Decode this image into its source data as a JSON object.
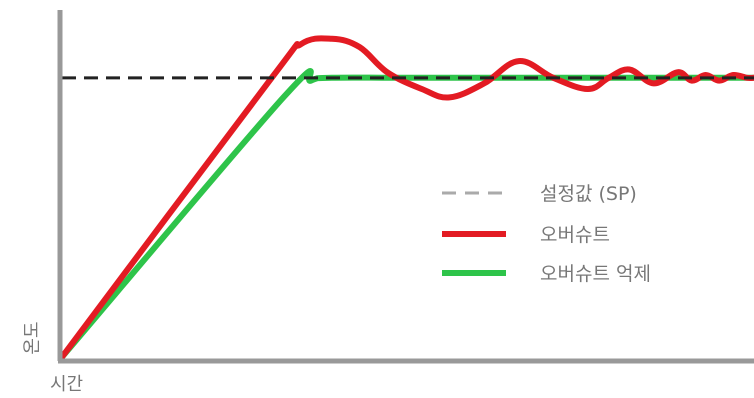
{
  "chart_data": {
    "type": "line",
    "xlabel": "시간",
    "ylabel": "온도",
    "colors": {
      "axis": "#999999",
      "setpoint": "#222222",
      "overshoot": "#e31b23",
      "suppressed": "#2ec44a",
      "legend_setpoint": "#aaaaaa",
      "text": "#777777"
    },
    "grid": false,
    "legend_position": "right",
    "legend": [
      {
        "label": "설정값 (SP)",
        "series": "setpoint",
        "style": "dashed"
      },
      {
        "label": "오버슈트",
        "series": "overshoot",
        "style": "solid"
      },
      {
        "label": "오버슈트 억제",
        "series": "suppressed",
        "style": "solid"
      }
    ],
    "setpoint": 1.0,
    "xlim": [
      0,
      1
    ],
    "ylim": [
      0,
      1.2
    ],
    "series": [
      {
        "id": "overshoot",
        "x": [
          0.0,
          0.3,
          0.345,
          0.39,
          0.43,
          0.47,
          0.52,
          0.56,
          0.61,
          0.66,
          0.71,
          0.76,
          0.79,
          0.82,
          0.855,
          0.89,
          0.91,
          0.93,
          0.95,
          0.97,
          0.99,
          1.0
        ],
        "y": [
          0.0,
          0.99,
          1.12,
          1.14,
          1.11,
          1.02,
          0.96,
          0.93,
          0.98,
          1.06,
          1.0,
          0.96,
          1.0,
          1.03,
          0.98,
          1.02,
          0.99,
          1.01,
          0.99,
          1.01,
          1.0,
          1.0
        ]
      },
      {
        "id": "suppressed",
        "x": [
          0.0,
          0.32,
          0.36,
          0.39,
          0.5,
          0.7,
          0.9,
          1.0
        ],
        "y": [
          0.0,
          0.93,
          0.99,
          1.0,
          1.0,
          1.0,
          1.0,
          1.0
        ]
      }
    ]
  }
}
